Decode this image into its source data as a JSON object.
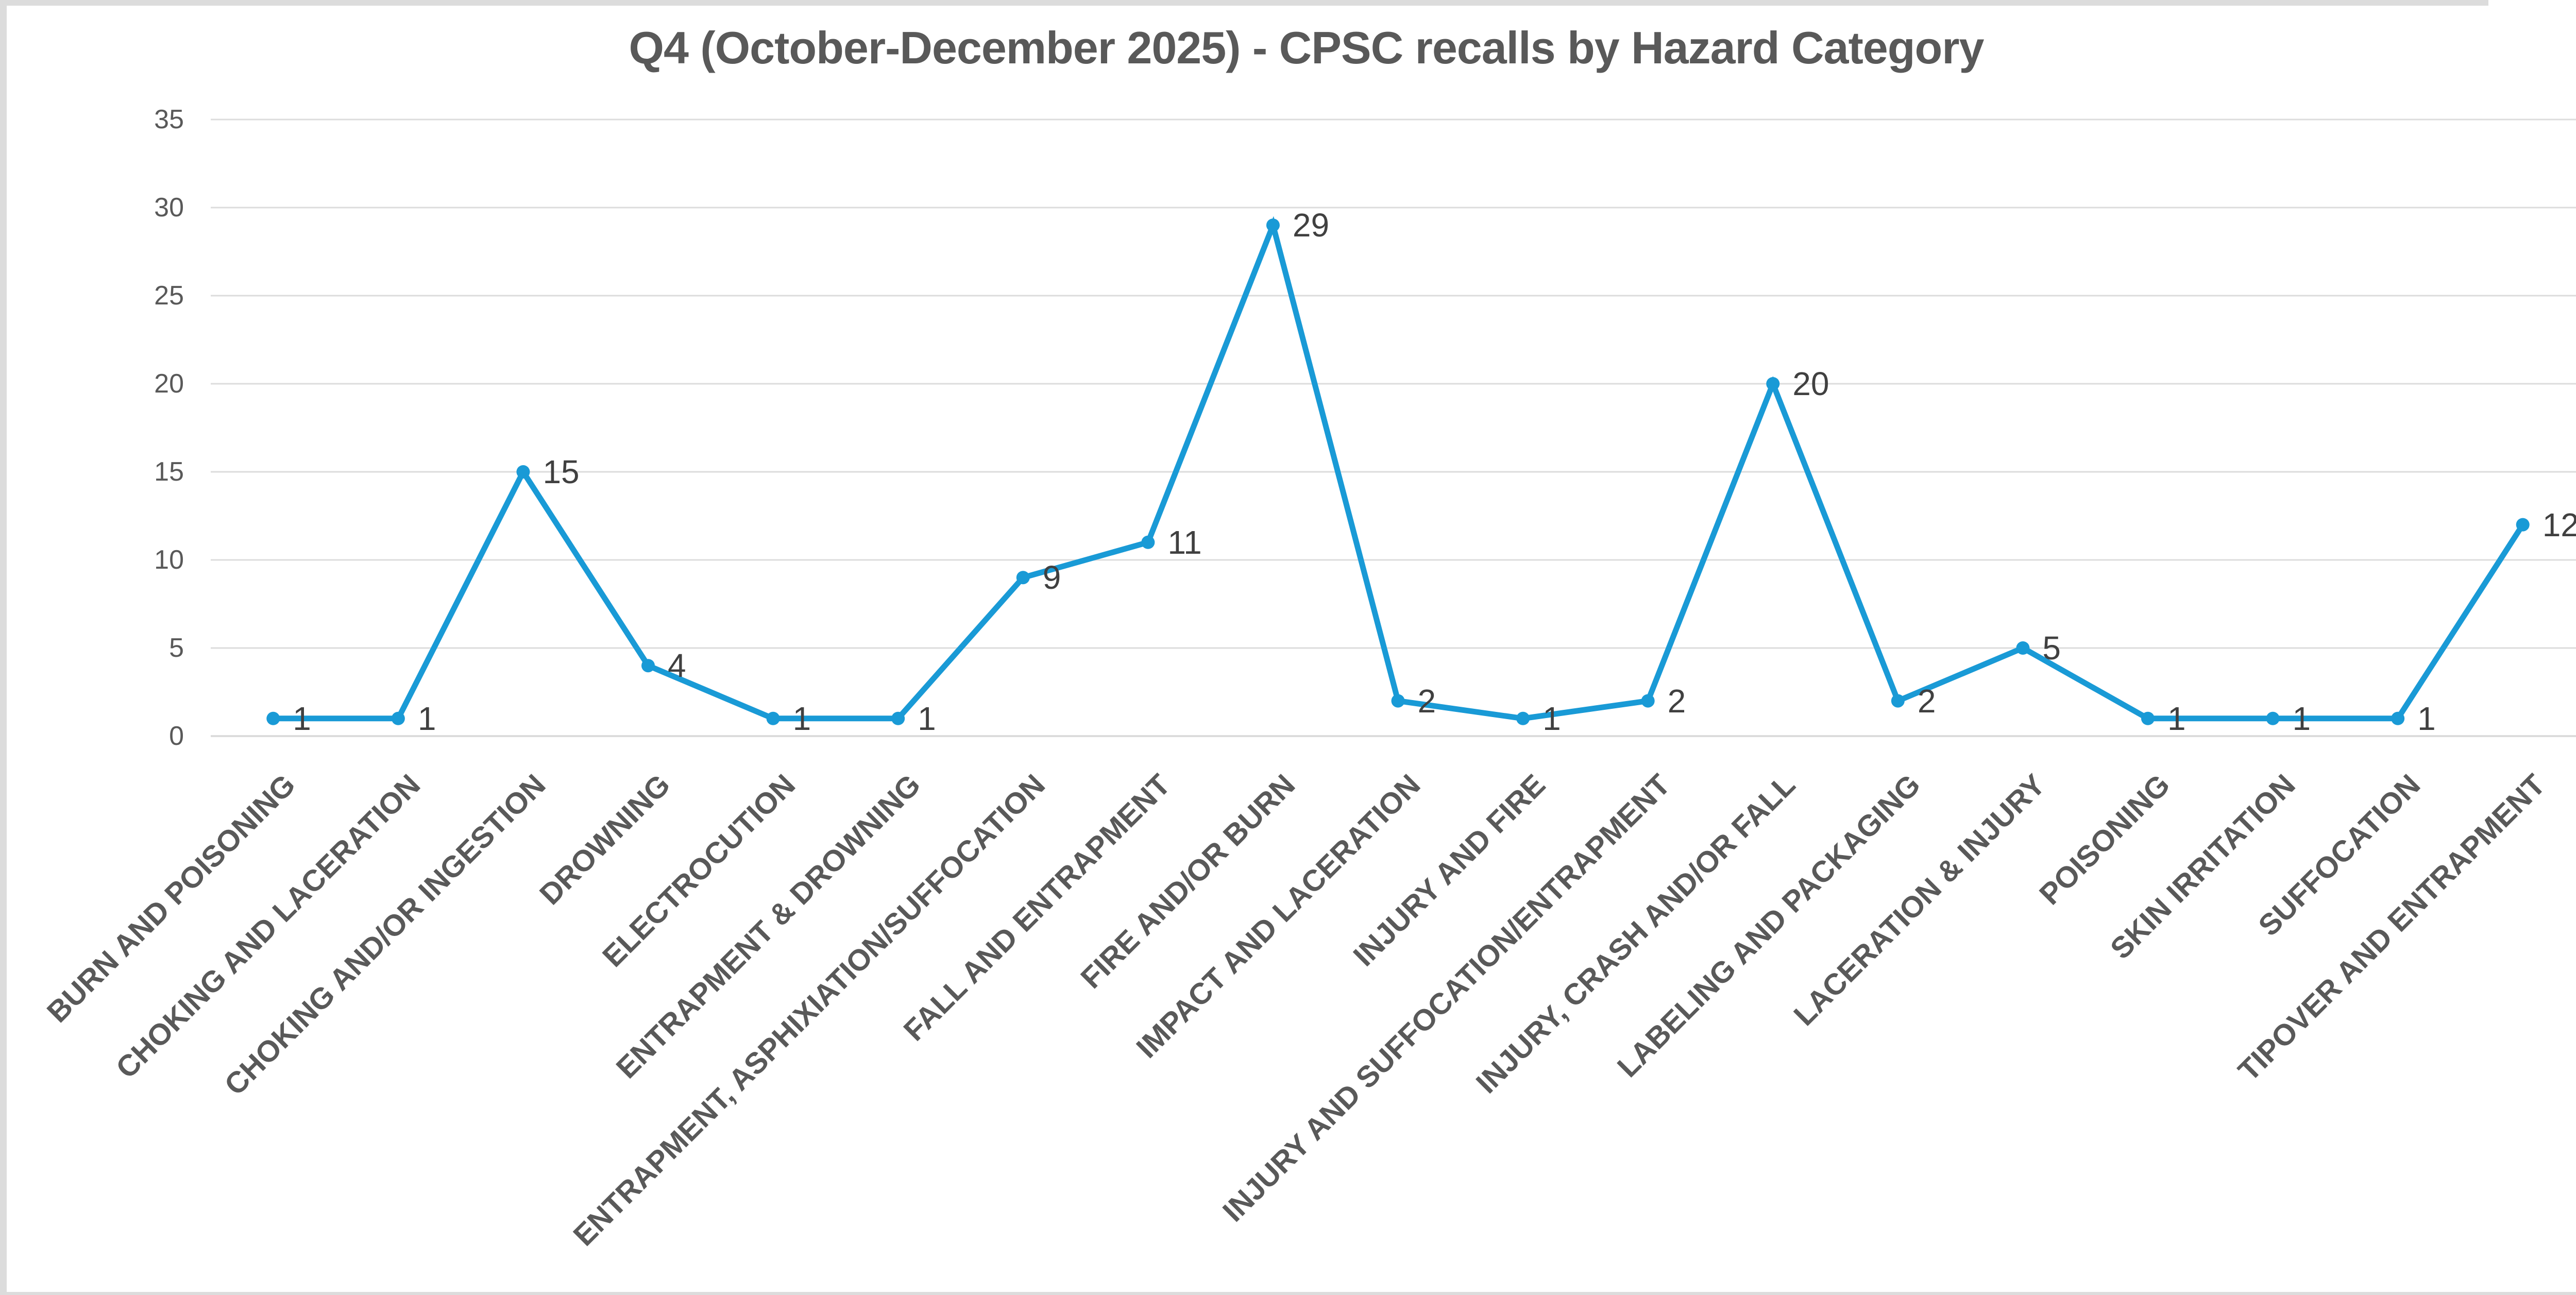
{
  "chart_data": {
    "type": "line",
    "title": "Q4 (October-December 2025) - CPSC recalls by Hazard Category",
    "categories": [
      "BURN AND POISONING",
      "CHOKING AND LACERATION",
      "CHOKING AND/OR INGESTION",
      "DROWNING",
      "ELECTROCUTION",
      "ENTRAPMENT & DROWNING",
      "ENTRAPMENT, ASPHIXIATION/SUFFOCATION",
      "FALL AND ENTRAPMENT",
      "FIRE AND/OR BURN",
      "IMPACT AND LACERATION",
      "INJURY AND FIRE",
      "INJURY AND SUFFOCATION/ENTRAPMENT",
      "INJURY, CRASH AND/OR FALL",
      "LABELING AND PACKAGING",
      "LACERATION & INJURY",
      "POISONING",
      "SKIN IRRITATION",
      "SUFFOCATION",
      "TIPOVER AND ENTRAPMENT"
    ],
    "values": [
      1,
      1,
      15,
      4,
      1,
      1,
      9,
      11,
      29,
      2,
      1,
      2,
      20,
      2,
      5,
      1,
      1,
      1,
      12
    ],
    "data_labels": [
      1,
      1,
      15,
      4,
      1,
      1,
      9,
      11,
      29,
      2,
      1,
      2,
      20,
      2,
      5,
      1,
      1,
      1,
      12
    ],
    "xlabel": "",
    "ylabel": "",
    "yticks": [
      0,
      5,
      10,
      15,
      20,
      25,
      30,
      35
    ],
    "ylim": [
      0,
      35
    ],
    "grid": "horizontal",
    "legend": "none",
    "marker": "circle",
    "data_label_position": "right",
    "colors": {
      "series": "#199ad6",
      "title_text": "#595959",
      "axis_tick_text": "#595959",
      "category_text": "#595959",
      "data_label_text": "#404040",
      "gridline": "#dcdcdc",
      "background": "#ffffff",
      "frame_edge": "#dcdcdc"
    }
  }
}
